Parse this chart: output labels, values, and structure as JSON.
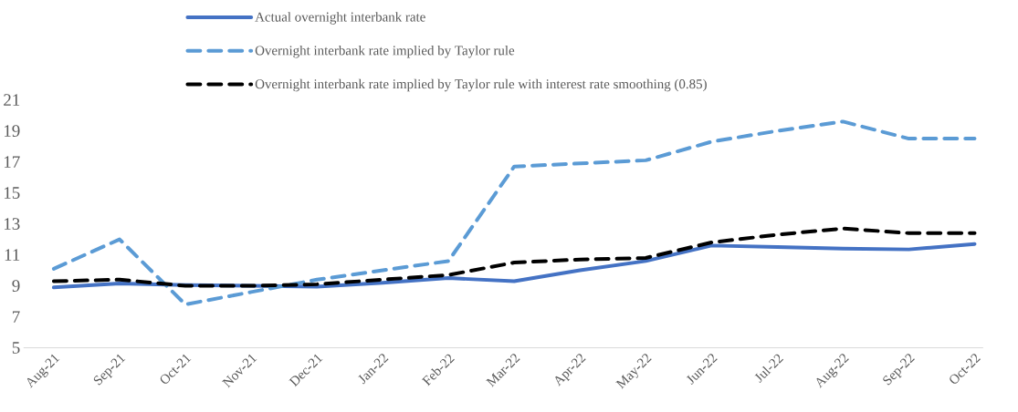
{
  "chart_data": {
    "type": "line",
    "categories": [
      "Aug-21",
      "Sep-21",
      "Oct-21",
      "Nov-21",
      "Dec-21",
      "Jan-22",
      "Feb-22",
      "Mar-22",
      "Apr-22",
      "May-22",
      "Jun-22",
      "Jul-22",
      "Aug-22",
      "Sep-22",
      "Oct-22"
    ],
    "series": [
      {
        "name": "Actual overnight interbank rate",
        "color": "#4472c4",
        "line_style": "solid",
        "values": [
          8.9,
          9.15,
          9.05,
          9.0,
          8.95,
          9.2,
          9.5,
          9.3,
          10.0,
          10.6,
          11.6,
          11.5,
          11.4,
          11.35,
          11.7
        ]
      },
      {
        "name": "Overnight interbank rate implied by Taylor rule",
        "color": "#5b9bd5",
        "line_style": "dashed",
        "values": [
          10.1,
          12.0,
          7.8,
          8.6,
          9.4,
          10.0,
          10.6,
          16.7,
          16.9,
          17.1,
          18.3,
          19.0,
          19.6,
          18.5,
          18.5
        ]
      },
      {
        "name": "Overnight interbank rate implied by Taylor rule with interest rate smoothing (0.85)",
        "color": "#000000",
        "line_style": "dashed",
        "values": [
          9.3,
          9.4,
          9.0,
          9.0,
          9.1,
          9.4,
          9.7,
          10.5,
          10.7,
          10.8,
          11.8,
          12.3,
          12.7,
          12.4,
          12.4
        ]
      }
    ],
    "ylim": [
      5,
      21
    ],
    "yticks": [
      5,
      7,
      9,
      11,
      13,
      15,
      17,
      19,
      21
    ],
    "legend": "top",
    "marker": "none"
  }
}
